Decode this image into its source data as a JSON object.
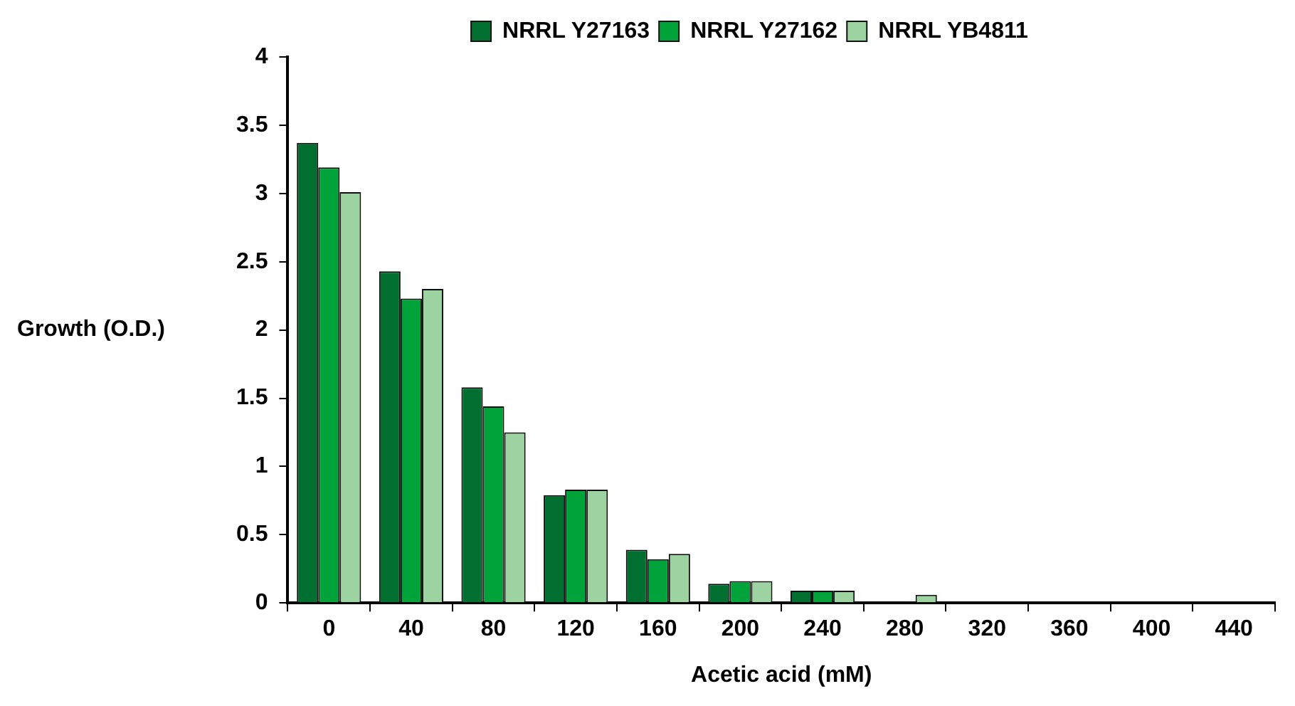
{
  "chart_data": {
    "type": "bar",
    "xlabel": "Acetic acid (mM)",
    "ylabel": "Growth (O.D.)",
    "categories": [
      "0",
      "40",
      "80",
      "120",
      "160",
      "200",
      "240",
      "280",
      "320",
      "360",
      "400",
      "440"
    ],
    "series": [
      {
        "name": "NRRL Y27163",
        "color": "#006f30",
        "values": [
          3.37,
          2.43,
          1.58,
          0.79,
          0.39,
          0.14,
          0.09,
          0,
          0,
          0,
          0,
          0
        ]
      },
      {
        "name": "NRRL Y27162",
        "color": "#00a33a",
        "values": [
          3.19,
          2.23,
          1.44,
          0.83,
          0.32,
          0.16,
          0.09,
          0,
          0,
          0,
          0,
          0
        ]
      },
      {
        "name": "NRRL YB4811",
        "color": "#9dd3a0",
        "values": [
          3.01,
          2.3,
          1.25,
          0.83,
          0.36,
          0.16,
          0.09,
          0.06,
          0,
          0,
          0,
          0
        ]
      }
    ],
    "ylim": [
      0,
      4
    ],
    "yticks": [
      0,
      0.5,
      1,
      1.5,
      2,
      2.5,
      3,
      3.5,
      4
    ],
    "grid": false,
    "legend": "top"
  }
}
